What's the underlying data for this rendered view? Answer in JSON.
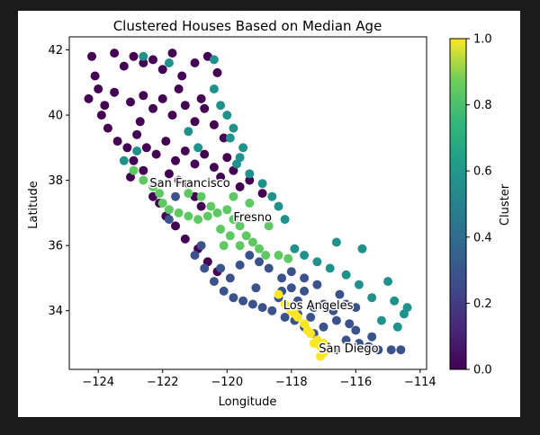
{
  "chart_data": {
    "type": "scatter",
    "title": "Clustered Houses Based on Median Age",
    "xlabel": "Longitude",
    "ylabel": "Latitude",
    "xlim": [
      -124.9,
      -113.8
    ],
    "ylim": [
      32.2,
      42.4
    ],
    "xticks": [
      -124,
      -122,
      -120,
      -118,
      -116,
      -114
    ],
    "xtick_labels": [
      "−124",
      "−122",
      "−120",
      "−118",
      "−116",
      "−114"
    ],
    "yticks": [
      34,
      36,
      38,
      40,
      42
    ],
    "ytick_labels": [
      "34",
      "36",
      "38",
      "40",
      "42"
    ],
    "grid": false,
    "colorbar": {
      "label": "Cluster",
      "colormap": "viridis",
      "range": [
        0.0,
        1.0
      ],
      "ticks": [
        0.0,
        0.2,
        0.4,
        0.6,
        0.8,
        1.0
      ],
      "tick_labels": [
        "0.0",
        "0.2",
        "0.4",
        "0.6",
        "0.8",
        "1.0"
      ]
    },
    "clusters": [
      {
        "value": 0.0,
        "color": "#440154"
      },
      {
        "value": 0.25,
        "color": "#3b528b"
      },
      {
        "value": 0.6,
        "color": "#21918c"
      },
      {
        "value": 0.8,
        "color": "#5ec962"
      },
      {
        "value": 1.0,
        "color": "#fde725"
      }
    ],
    "annotations": [
      {
        "text": "San Francisco",
        "x": -122.4,
        "y": 37.8
      },
      {
        "text": "Fresno",
        "x": -119.8,
        "y": 36.75
      },
      {
        "text": "Los Angeles",
        "x": -118.25,
        "y": 34.05
      },
      {
        "text": "San Diego",
        "x": -117.15,
        "y": 32.72
      }
    ],
    "series": [
      {
        "cluster": 0.0,
        "points": [
          [
            -124.2,
            41.8
          ],
          [
            -124.1,
            41.2
          ],
          [
            -124.0,
            40.8
          ],
          [
            -123.8,
            40.3
          ],
          [
            -124.3,
            40.5
          ],
          [
            -123.5,
            41.9
          ],
          [
            -123.2,
            41.5
          ],
          [
            -122.9,
            41.8
          ],
          [
            -122.6,
            41.6
          ],
          [
            -122.3,
            41.7
          ],
          [
            -122.0,
            41.4
          ],
          [
            -121.7,
            41.9
          ],
          [
            -121.4,
            41.2
          ],
          [
            -121.0,
            41.6
          ],
          [
            -120.6,
            41.8
          ],
          [
            -120.3,
            41.3
          ],
          [
            -123.5,
            40.7
          ],
          [
            -123.0,
            40.4
          ],
          [
            -122.6,
            40.6
          ],
          [
            -122.3,
            40.2
          ],
          [
            -122.0,
            40.5
          ],
          [
            -121.7,
            40.0
          ],
          [
            -121.3,
            40.3
          ],
          [
            -121.0,
            39.8
          ],
          [
            -120.7,
            40.2
          ],
          [
            -120.4,
            39.7
          ],
          [
            -120.1,
            39.3
          ],
          [
            -123.7,
            39.6
          ],
          [
            -123.4,
            39.2
          ],
          [
            -123.1,
            39.0
          ],
          [
            -122.8,
            39.4
          ],
          [
            -122.5,
            39.0
          ],
          [
            -122.2,
            38.8
          ],
          [
            -121.9,
            39.2
          ],
          [
            -121.6,
            38.6
          ],
          [
            -121.3,
            38.9
          ],
          [
            -121.0,
            38.5
          ],
          [
            -120.7,
            38.8
          ],
          [
            -120.4,
            38.4
          ],
          [
            -120.2,
            38.1
          ],
          [
            -121.8,
            38.2
          ],
          [
            -121.5,
            38.0
          ],
          [
            -121.2,
            37.9
          ],
          [
            -122.6,
            38.3
          ],
          [
            -122.9,
            38.6
          ],
          [
            -123.0,
            38.1
          ],
          [
            -120.0,
            38.7
          ],
          [
            -119.8,
            38.3
          ],
          [
            -119.6,
            37.8
          ],
          [
            -122.1,
            37.3
          ],
          [
            -121.9,
            36.9
          ],
          [
            -121.6,
            36.6
          ],
          [
            -121.3,
            36.2
          ],
          [
            -120.9,
            35.9
          ],
          [
            -120.6,
            35.5
          ],
          [
            -120.3,
            35.2
          ],
          [
            -122.3,
            37.5
          ],
          [
            -119.3,
            38.0
          ],
          [
            -118.9,
            37.6
          ],
          [
            -121.0,
            37.5
          ],
          [
            -120.8,
            37.2
          ],
          [
            -122.7,
            39.8
          ],
          [
            -123.9,
            40.0
          ],
          [
            -121.5,
            40.8
          ],
          [
            -120.8,
            40.5
          ]
        ]
      },
      {
        "cluster": 0.25,
        "points": [
          [
            -121.0,
            35.7
          ],
          [
            -120.7,
            35.3
          ],
          [
            -120.4,
            34.9
          ],
          [
            -120.1,
            34.6
          ],
          [
            -119.8,
            34.4
          ],
          [
            -119.5,
            34.3
          ],
          [
            -119.2,
            34.2
          ],
          [
            -118.9,
            34.1
          ],
          [
            -118.6,
            34.0
          ],
          [
            -118.2,
            33.8
          ],
          [
            -117.9,
            33.7
          ],
          [
            -117.6,
            33.5
          ],
          [
            -117.3,
            33.3
          ],
          [
            -116.9,
            32.9
          ],
          [
            -116.6,
            32.8
          ],
          [
            -116.3,
            33.1
          ],
          [
            -116.0,
            33.4
          ],
          [
            -115.6,
            32.9
          ],
          [
            -115.3,
            32.8
          ],
          [
            -114.9,
            32.8
          ],
          [
            -114.6,
            32.8
          ],
          [
            -117.3,
            34.1
          ],
          [
            -117.0,
            34.2
          ],
          [
            -116.7,
            34.0
          ],
          [
            -116.3,
            34.2
          ],
          [
            -116.0,
            34.1
          ],
          [
            -117.6,
            34.6
          ],
          [
            -118.0,
            34.7
          ],
          [
            -118.3,
            35.0
          ],
          [
            -118.7,
            35.3
          ],
          [
            -119.0,
            35.5
          ],
          [
            -119.3,
            35.7
          ],
          [
            -119.6,
            35.4
          ],
          [
            -119.9,
            35.0
          ],
          [
            -120.2,
            35.3
          ],
          [
            -118.4,
            34.4
          ],
          [
            -117.8,
            34.3
          ],
          [
            -117.4,
            33.8
          ],
          [
            -117.0,
            33.5
          ],
          [
            -116.6,
            33.7
          ],
          [
            -116.2,
            33.6
          ],
          [
            -115.9,
            33.0
          ],
          [
            -118.0,
            35.2
          ],
          [
            -117.6,
            35.0
          ],
          [
            -117.2,
            34.8
          ],
          [
            -116.5,
            34.5
          ],
          [
            -115.5,
            33.2
          ],
          [
            -117.8,
            33.9
          ],
          [
            -118.3,
            34.6
          ],
          [
            -119.1,
            34.7
          ],
          [
            -121.6,
            37.5
          ],
          [
            -121.8,
            36.8
          ],
          [
            -120.8,
            36.0
          ]
        ]
      },
      {
        "cluster": 0.6,
        "points": [
          [
            -122.6,
            41.8
          ],
          [
            -121.8,
            41.6
          ],
          [
            -120.4,
            41.7
          ],
          [
            -120.2,
            40.3
          ],
          [
            -120.0,
            40.0
          ],
          [
            -119.8,
            39.6
          ],
          [
            -119.9,
            39.3
          ],
          [
            -119.5,
            39.0
          ],
          [
            -119.6,
            38.7
          ],
          [
            -119.3,
            38.2
          ],
          [
            -118.9,
            37.9
          ],
          [
            -118.6,
            37.5
          ],
          [
            -118.4,
            37.2
          ],
          [
            -118.2,
            36.8
          ],
          [
            -122.8,
            38.9
          ],
          [
            -123.2,
            38.6
          ],
          [
            -121.2,
            39.5
          ],
          [
            -120.9,
            39.0
          ],
          [
            -117.9,
            35.9
          ],
          [
            -117.6,
            35.7
          ],
          [
            -117.2,
            35.5
          ],
          [
            -116.8,
            35.3
          ],
          [
            -116.3,
            35.1
          ],
          [
            -115.9,
            34.8
          ],
          [
            -115.5,
            34.4
          ],
          [
            -114.8,
            34.3
          ],
          [
            -114.5,
            33.9
          ],
          [
            -114.7,
            33.5
          ],
          [
            -115.2,
            33.7
          ],
          [
            -116.6,
            36.1
          ],
          [
            -115.8,
            35.9
          ],
          [
            -115.0,
            34.9
          ],
          [
            -114.4,
            34.1
          ],
          [
            -120.4,
            40.8
          ],
          [
            -119.7,
            38.5
          ]
        ]
      },
      {
        "cluster": 0.8,
        "points": [
          [
            -122.9,
            38.3
          ],
          [
            -122.6,
            38.0
          ],
          [
            -122.3,
            37.8
          ],
          [
            -122.1,
            37.6
          ],
          [
            -122.0,
            37.3
          ],
          [
            -121.8,
            37.1
          ],
          [
            -121.5,
            37.0
          ],
          [
            -121.2,
            36.9
          ],
          [
            -120.9,
            36.8
          ],
          [
            -120.6,
            36.9
          ],
          [
            -120.3,
            37.0
          ],
          [
            -120.0,
            37.1
          ],
          [
            -119.8,
            36.8
          ],
          [
            -119.6,
            36.6
          ],
          [
            -119.4,
            36.3
          ],
          [
            -119.2,
            36.1
          ],
          [
            -119.0,
            35.9
          ],
          [
            -118.8,
            35.7
          ],
          [
            -120.2,
            36.5
          ],
          [
            -119.9,
            36.3
          ],
          [
            -119.6,
            36.0
          ],
          [
            -120.5,
            37.2
          ],
          [
            -120.8,
            37.5
          ],
          [
            -121.2,
            37.6
          ],
          [
            -119.3,
            37.3
          ],
          [
            -118.7,
            36.6
          ],
          [
            -118.4,
            35.7
          ],
          [
            -118.1,
            35.6
          ],
          [
            -119.8,
            37.5
          ],
          [
            -120.1,
            36.0
          ]
        ]
      },
      {
        "cluster": 1.0,
        "points": [
          [
            -118.4,
            34.5
          ],
          [
            -118.2,
            34.2
          ],
          [
            -118.0,
            34.0
          ],
          [
            -117.8,
            33.8
          ],
          [
            -117.6,
            33.6
          ],
          [
            -117.4,
            33.3
          ],
          [
            -117.2,
            33.1
          ],
          [
            -117.1,
            32.9
          ],
          [
            -117.0,
            32.7
          ],
          [
            -117.1,
            32.6
          ],
          [
            -118.1,
            34.1
          ],
          [
            -117.9,
            33.9
          ],
          [
            -117.5,
            33.4
          ],
          [
            -117.3,
            33.0
          ],
          [
            -117.0,
            33.0
          ],
          [
            -116.9,
            32.8
          ]
        ]
      }
    ]
  }
}
